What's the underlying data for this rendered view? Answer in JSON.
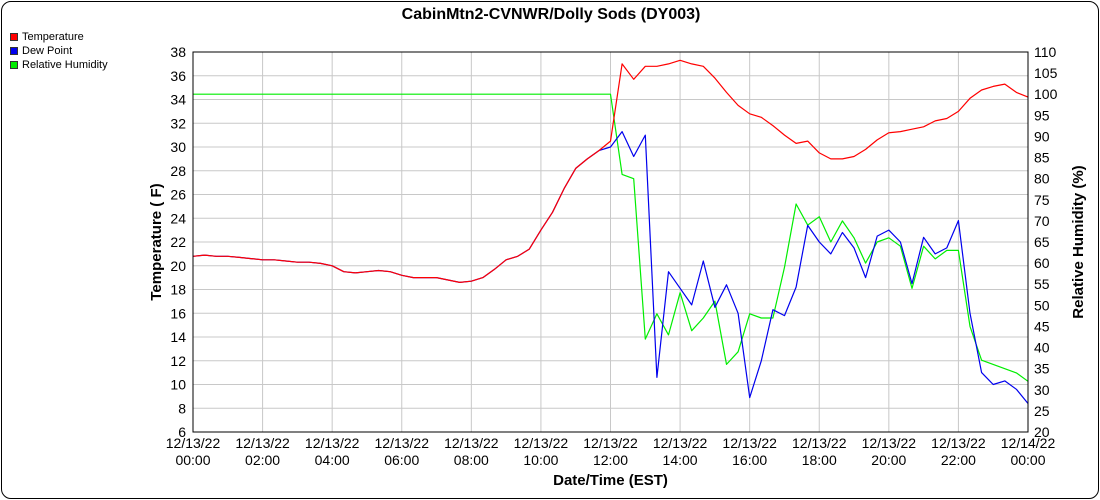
{
  "chart_data": {
    "type": "line",
    "title": "CabinMtn2-CVNWR/Dolly Sods (DY003)",
    "xlabel": "Date/Time (EST)",
    "ylabel_left": "Temperature ( F)",
    "ylabel_right": "Relative Humidity (%)",
    "ylim_left": [
      6,
      38
    ],
    "ylim_right": [
      20,
      110
    ],
    "yticks_left": [
      "38",
      "36",
      "34",
      "32",
      "30",
      "28",
      "26",
      "24",
      "22",
      "20",
      "18",
      "16",
      "14",
      "12",
      "10",
      "8",
      "6"
    ],
    "yticks_right": [
      "110",
      "105",
      "100",
      "95",
      "90",
      "85",
      "80",
      "75",
      "70",
      "65",
      "60",
      "55",
      "50",
      "45",
      "40",
      "35",
      "30",
      "25",
      "20"
    ],
    "xticks": [
      {
        "date": "12/13/22",
        "time": "00:00"
      },
      {
        "date": "12/13/22",
        "time": "02:00"
      },
      {
        "date": "12/13/22",
        "time": "04:00"
      },
      {
        "date": "12/13/22",
        "time": "06:00"
      },
      {
        "date": "12/13/22",
        "time": "08:00"
      },
      {
        "date": "12/13/22",
        "time": "10:00"
      },
      {
        "date": "12/13/22",
        "time": "12:00"
      },
      {
        "date": "12/13/22",
        "time": "14:00"
      },
      {
        "date": "12/13/22",
        "time": "16:00"
      },
      {
        "date": "12/13/22",
        "time": "18:00"
      },
      {
        "date": "12/13/22",
        "time": "20:00"
      },
      {
        "date": "12/13/22",
        "time": "22:00"
      },
      {
        "date": "12/14/22",
        "time": "00:00"
      }
    ],
    "grid": true,
    "legend_position": "top-left",
    "series": [
      {
        "name": "Temperature",
        "color": "#ff0000",
        "axis": "left",
        "x": [
          "00:00",
          "00:20",
          "00:40",
          "01:00",
          "01:20",
          "01:40",
          "02:00",
          "02:20",
          "02:40",
          "03:00",
          "03:20",
          "03:40",
          "04:00",
          "04:20",
          "04:40",
          "05:00",
          "05:20",
          "05:40",
          "06:00",
          "06:20",
          "06:40",
          "07:00",
          "07:20",
          "07:40",
          "08:00",
          "08:20",
          "08:40",
          "09:00",
          "09:20",
          "09:40",
          "10:00",
          "10:20",
          "10:40",
          "11:00",
          "11:20",
          "11:40",
          "12:00",
          "12:20",
          "12:40",
          "13:00",
          "13:20",
          "13:40",
          "14:00",
          "14:20",
          "14:40",
          "15:00",
          "15:20",
          "15:40",
          "16:00",
          "16:20",
          "16:40",
          "17:00",
          "17:20",
          "17:40",
          "18:00",
          "18:20",
          "18:40",
          "19:00",
          "19:20",
          "19:40",
          "20:00",
          "20:20",
          "20:40",
          "21:00",
          "21:20",
          "21:40",
          "22:00",
          "22:20",
          "22:40",
          "23:00",
          "23:20",
          "23:40",
          "24:00"
        ],
        "values": [
          20.8,
          20.9,
          20.8,
          20.8,
          20.7,
          20.6,
          20.5,
          20.5,
          20.4,
          20.3,
          20.3,
          20.2,
          20.0,
          19.5,
          19.4,
          19.5,
          19.6,
          19.5,
          19.2,
          19.0,
          19.0,
          19.0,
          18.8,
          18.6,
          18.7,
          19.0,
          19.7,
          20.5,
          20.8,
          21.4,
          23.0,
          24.5,
          26.5,
          28.2,
          29.0,
          29.7,
          30.5,
          37.0,
          35.7,
          36.8,
          36.8,
          37.0,
          37.3,
          37.0,
          36.8,
          35.8,
          34.6,
          33.5,
          32.8,
          32.5,
          31.8,
          31.0,
          30.3,
          30.5,
          29.5,
          29.0,
          29.0,
          29.2,
          29.8,
          30.6,
          31.2,
          31.3,
          31.5,
          31.7,
          32.2,
          32.4,
          33.0,
          34.1,
          34.8,
          35.1,
          35.3,
          34.6,
          34.2
        ]
      },
      {
        "name": "Dew Point",
        "color": "#0000ee",
        "axis": "left",
        "x": [
          "00:00",
          "00:20",
          "00:40",
          "01:00",
          "01:20",
          "01:40",
          "02:00",
          "02:20",
          "02:40",
          "03:00",
          "03:20",
          "03:40",
          "04:00",
          "04:20",
          "04:40",
          "05:00",
          "05:20",
          "05:40",
          "06:00",
          "06:20",
          "06:40",
          "07:00",
          "07:20",
          "07:40",
          "08:00",
          "08:20",
          "08:40",
          "09:00",
          "09:20",
          "09:40",
          "10:00",
          "10:20",
          "10:40",
          "11:00",
          "11:20",
          "11:40",
          "12:00",
          "12:20",
          "12:40",
          "13:00",
          "13:20",
          "13:40",
          "14:00",
          "14:20",
          "14:40",
          "15:00",
          "15:20",
          "15:40",
          "16:00",
          "16:20",
          "16:40",
          "17:00",
          "17:20",
          "17:40",
          "18:00",
          "18:20",
          "18:40",
          "19:00",
          "19:20",
          "19:40",
          "20:00",
          "20:20",
          "20:40",
          "21:00",
          "21:20",
          "21:40",
          "22:00",
          "22:20",
          "22:40",
          "23:00",
          "23:20",
          "23:40",
          "24:00"
        ],
        "values": [
          20.8,
          20.9,
          20.8,
          20.8,
          20.7,
          20.6,
          20.5,
          20.5,
          20.4,
          20.3,
          20.3,
          20.2,
          20.0,
          19.5,
          19.4,
          19.5,
          19.6,
          19.5,
          19.2,
          19.0,
          19.0,
          19.0,
          18.8,
          18.6,
          18.7,
          19.0,
          19.7,
          20.5,
          20.8,
          21.4,
          23.0,
          24.5,
          26.5,
          28.2,
          29.0,
          29.7,
          30.0,
          31.3,
          29.2,
          31.0,
          10.6,
          19.5,
          18.1,
          16.7,
          20.4,
          16.5,
          18.4,
          16.0,
          8.9,
          12.0,
          16.3,
          15.8,
          18.2,
          23.4,
          22.0,
          21.0,
          22.8,
          21.5,
          19.0,
          22.5,
          23.0,
          22.0,
          18.5,
          22.4,
          21.0,
          21.5,
          23.8,
          16.0,
          11.0,
          10.0,
          10.3,
          9.6,
          8.4
        ]
      },
      {
        "name": "Relative Humidity",
        "color": "#00ee00",
        "axis": "right",
        "x": [
          "00:00",
          "00:20",
          "00:40",
          "01:00",
          "01:20",
          "01:40",
          "02:00",
          "02:20",
          "02:40",
          "03:00",
          "03:20",
          "03:40",
          "04:00",
          "04:20",
          "04:40",
          "05:00",
          "05:20",
          "05:40",
          "06:00",
          "06:20",
          "06:40",
          "07:00",
          "07:20",
          "07:40",
          "08:00",
          "08:20",
          "08:40",
          "09:00",
          "09:20",
          "09:40",
          "10:00",
          "10:20",
          "10:40",
          "11:00",
          "11:20",
          "11:40",
          "12:00",
          "12:20",
          "12:40",
          "13:00",
          "13:20",
          "13:40",
          "14:00",
          "14:20",
          "14:40",
          "15:00",
          "15:20",
          "15:40",
          "16:00",
          "16:20",
          "16:40",
          "17:00",
          "17:20",
          "17:40",
          "18:00",
          "18:20",
          "18:40",
          "19:00",
          "19:20",
          "19:40",
          "20:00",
          "20:20",
          "20:40",
          "21:00",
          "21:20",
          "21:40",
          "22:00",
          "22:20",
          "22:40",
          "23:00",
          "23:20",
          "23:40",
          "24:00"
        ],
        "values": [
          100,
          100,
          100,
          100,
          100,
          100,
          100,
          100,
          100,
          100,
          100,
          100,
          100,
          100,
          100,
          100,
          100,
          100,
          100,
          100,
          100,
          100,
          100,
          100,
          100,
          100,
          100,
          100,
          100,
          100,
          100,
          100,
          100,
          100,
          100,
          100,
          100,
          81,
          80,
          42,
          48,
          43,
          53,
          44,
          47,
          51,
          36,
          39,
          48,
          47,
          47,
          59,
          74,
          69,
          71,
          65,
          70,
          66,
          60,
          65,
          66,
          64,
          54,
          64,
          61,
          63,
          63,
          45,
          37,
          36,
          35,
          34,
          32
        ]
      }
    ]
  }
}
